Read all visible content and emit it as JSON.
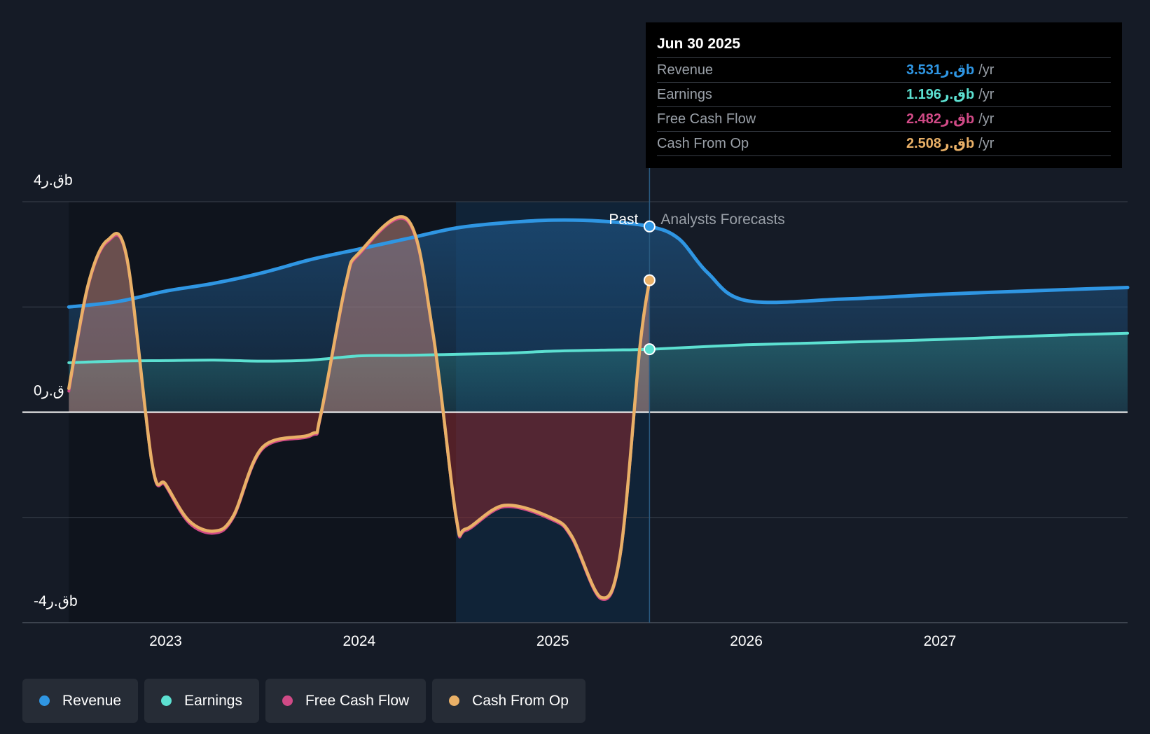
{
  "chart_data": {
    "type": "area",
    "y_axis": {
      "ticks": [
        {
          "value": 4,
          "label": "4ق.رb"
        },
        {
          "value": 0,
          "label": "0ق.ر"
        },
        {
          "value": -4,
          "label": "-4ق.رb"
        }
      ],
      "range": [
        -4,
        4
      ]
    },
    "x_axis": {
      "ticks": [
        {
          "value": 2023,
          "label": "2023"
        },
        {
          "value": 2024,
          "label": "2024"
        },
        {
          "value": 2025,
          "label": "2025"
        },
        {
          "value": 2026,
          "label": "2026"
        },
        {
          "value": 2027,
          "label": "2027"
        }
      ],
      "range": [
        2022.26,
        2027.97
      ]
    },
    "past_label": "Past",
    "forecast_label": "Analysts Forecasts",
    "past_end": 2025.5,
    "shaded_region_start": 2024.5,
    "series": [
      {
        "name": "Revenue",
        "color": "#2f96e3",
        "points": [
          [
            2022.5,
            2.0
          ],
          [
            2022.75,
            2.1
          ],
          [
            2023.0,
            2.3
          ],
          [
            2023.25,
            2.45
          ],
          [
            2023.5,
            2.65
          ],
          [
            2023.75,
            2.9
          ],
          [
            2024.0,
            3.1
          ],
          [
            2024.25,
            3.3
          ],
          [
            2024.5,
            3.5
          ],
          [
            2024.75,
            3.6
          ],
          [
            2025.0,
            3.65
          ],
          [
            2025.25,
            3.63
          ],
          [
            2025.5,
            3.53
          ],
          [
            2025.65,
            3.3
          ],
          [
            2025.8,
            2.65
          ],
          [
            2026.0,
            2.12
          ],
          [
            2026.5,
            2.15
          ],
          [
            2027.0,
            2.24
          ],
          [
            2027.5,
            2.31
          ],
          [
            2027.97,
            2.37
          ]
        ]
      },
      {
        "name": "Earnings",
        "color": "#5ce0d1",
        "points": [
          [
            2022.5,
            0.94
          ],
          [
            2022.75,
            0.97
          ],
          [
            2023.0,
            0.98
          ],
          [
            2023.25,
            0.99
          ],
          [
            2023.5,
            0.97
          ],
          [
            2023.75,
            0.99
          ],
          [
            2024.0,
            1.07
          ],
          [
            2024.25,
            1.08
          ],
          [
            2024.5,
            1.1
          ],
          [
            2024.75,
            1.12
          ],
          [
            2025.0,
            1.16
          ],
          [
            2025.25,
            1.18
          ],
          [
            2025.5,
            1.196
          ],
          [
            2026.0,
            1.28
          ],
          [
            2026.5,
            1.33
          ],
          [
            2027.0,
            1.38
          ],
          [
            2027.5,
            1.45
          ],
          [
            2027.97,
            1.5
          ]
        ]
      },
      {
        "name": "Free Cash Flow",
        "color": "#d04a86",
        "points": [
          [
            2022.5,
            0.4
          ],
          [
            2022.6,
            2.4
          ],
          [
            2022.7,
            3.24
          ],
          [
            2022.8,
            2.9
          ],
          [
            2022.93,
            -1.0
          ],
          [
            2023.0,
            -1.4
          ],
          [
            2023.12,
            -2.1
          ],
          [
            2023.25,
            -2.3
          ],
          [
            2023.35,
            -2.0
          ],
          [
            2023.5,
            -0.7
          ],
          [
            2023.75,
            -0.45
          ],
          [
            2023.8,
            -0.1
          ],
          [
            2023.93,
            2.4
          ],
          [
            2024.0,
            3.0
          ],
          [
            2024.25,
            3.63
          ],
          [
            2024.38,
            1.5
          ],
          [
            2024.5,
            -2.0
          ],
          [
            2024.55,
            -2.25
          ],
          [
            2024.75,
            -1.8
          ],
          [
            2025.0,
            -2.05
          ],
          [
            2025.1,
            -2.4
          ],
          [
            2025.25,
            -3.55
          ],
          [
            2025.35,
            -2.7
          ],
          [
            2025.45,
            1.2
          ],
          [
            2025.5,
            2.482
          ]
        ]
      },
      {
        "name": "Cash From Op",
        "color": "#e9b067",
        "points": [
          [
            2022.5,
            0.45
          ],
          [
            2022.6,
            2.43
          ],
          [
            2022.7,
            3.27
          ],
          [
            2022.8,
            2.93
          ],
          [
            2022.93,
            -0.98
          ],
          [
            2023.0,
            -1.37
          ],
          [
            2023.12,
            -2.06
          ],
          [
            2023.25,
            -2.26
          ],
          [
            2023.35,
            -1.97
          ],
          [
            2023.5,
            -0.67
          ],
          [
            2023.75,
            -0.42
          ],
          [
            2023.8,
            -0.07
          ],
          [
            2023.93,
            2.43
          ],
          [
            2024.0,
            3.03
          ],
          [
            2024.25,
            3.66
          ],
          [
            2024.38,
            1.53
          ],
          [
            2024.5,
            -1.97
          ],
          [
            2024.55,
            -2.22
          ],
          [
            2024.75,
            -1.77
          ],
          [
            2025.0,
            -2.02
          ],
          [
            2025.1,
            -2.37
          ],
          [
            2025.25,
            -3.52
          ],
          [
            2025.35,
            -2.67
          ],
          [
            2025.45,
            1.23
          ],
          [
            2025.5,
            2.508
          ]
        ]
      }
    ]
  },
  "tooltip": {
    "date": "Jun 30 2025",
    "rows": [
      {
        "label": "Revenue",
        "value": "3.531ق.رb",
        "unit": "/yr",
        "color": "#2f96e3"
      },
      {
        "label": "Earnings",
        "value": "1.196ق.رb",
        "unit": "/yr",
        "color": "#5ce0d1"
      },
      {
        "label": "Free Cash Flow",
        "value": "2.482ق.رb",
        "unit": "/yr",
        "color": "#d04a86"
      },
      {
        "label": "Cash From Op",
        "value": "2.508ق.رb",
        "unit": "/yr",
        "color": "#e9b067"
      }
    ]
  },
  "legend": [
    {
      "label": "Revenue",
      "color": "#2f96e3"
    },
    {
      "label": "Earnings",
      "color": "#5ce0d1"
    },
    {
      "label": "Free Cash Flow",
      "color": "#d04a86"
    },
    {
      "label": "Cash From Op",
      "color": "#e9b067"
    }
  ]
}
